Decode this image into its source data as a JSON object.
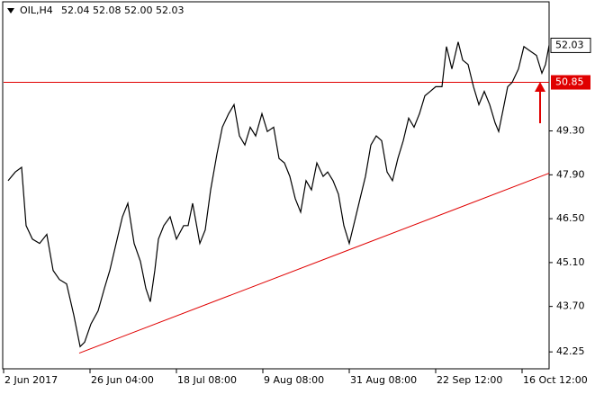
{
  "chart_data": {
    "type": "line",
    "title": "OIL,H4",
    "quote": "52.04 52.08 52.00 52.03",
    "x": [
      5,
      13,
      20,
      25,
      32,
      40,
      48,
      55,
      62,
      70,
      78,
      85,
      90,
      97,
      105,
      112,
      118,
      125,
      132,
      138,
      145,
      152,
      158,
      163,
      168,
      172,
      178,
      185,
      192,
      200,
      205,
      210,
      218,
      224,
      230,
      237,
      243,
      250,
      256,
      262,
      268,
      274,
      280,
      287,
      293,
      300,
      306,
      312,
      318,
      324,
      330,
      336,
      342,
      348,
      355,
      360,
      366,
      372,
      378,
      384,
      390,
      396,
      402,
      408,
      414,
      420,
      426,
      432,
      438,
      444,
      450,
      456,
      462,
      468,
      474,
      480,
      487,
      492,
      498,
      505,
      510,
      516,
      522,
      528,
      534,
      540,
      546,
      550,
      555,
      560,
      565,
      572,
      578,
      585,
      592,
      598,
      602,
      606
    ],
    "series": [
      {
        "name": "OIL",
        "color": "#000000",
        "values": [
          47.71,
          47.99,
          48.14,
          46.28,
          45.85,
          45.71,
          46.0,
          44.85,
          44.56,
          44.42,
          43.42,
          42.42,
          42.56,
          43.14,
          43.56,
          44.28,
          44.85,
          45.71,
          46.56,
          46.99,
          45.71,
          45.14,
          44.28,
          43.85,
          44.85,
          45.85,
          46.28,
          46.56,
          45.85,
          46.28,
          46.28,
          46.99,
          45.71,
          46.14,
          47.42,
          48.56,
          49.42,
          49.85,
          50.14,
          49.14,
          48.85,
          49.42,
          49.14,
          49.85,
          49.28,
          49.42,
          48.42,
          48.28,
          47.85,
          47.14,
          46.71,
          47.71,
          47.42,
          48.28,
          47.85,
          47.99,
          47.71,
          47.28,
          46.28,
          45.71,
          46.42,
          47.14,
          47.85,
          48.85,
          49.14,
          48.99,
          47.99,
          47.71,
          48.42,
          48.99,
          49.71,
          49.42,
          49.85,
          50.42,
          50.56,
          50.71,
          50.71,
          51.99,
          51.28,
          52.14,
          51.56,
          51.42,
          50.71,
          50.14,
          50.56,
          50.14,
          49.56,
          49.28,
          49.99,
          50.71,
          50.85,
          51.28,
          51.99,
          51.85,
          51.71,
          51.14,
          51.42,
          52.03
        ]
      }
    ],
    "last_price": 52.03,
    "hline": 50.85,
    "hline_color": "#e00000",
    "trendline": {
      "x": [
        84,
        606
      ],
      "values": [
        42.21,
        47.95
      ],
      "color": "#e00000"
    },
    "xlim": [
      0,
      606
    ],
    "xticks": [
      {
        "value": 0,
        "label": "2 Jun 2017"
      },
      {
        "value": 96,
        "label": "26 Jun 04:00"
      },
      {
        "value": 192,
        "label": "18 Jul 08:00"
      },
      {
        "value": 288,
        "label": "9 Aug 08:00"
      },
      {
        "value": 384,
        "label": "31 Aug 08:00"
      },
      {
        "value": 480,
        "label": "22 Sep 12:00"
      },
      {
        "value": 576,
        "label": "16 Oct 12:00"
      }
    ],
    "ylim": [
      41.71,
      53.42
    ],
    "yticks": [
      {
        "value": 49.3,
        "label": "49.30"
      },
      {
        "value": 47.9,
        "label": "47.90"
      },
      {
        "value": 46.5,
        "label": "46.50"
      },
      {
        "value": 45.1,
        "label": "45.10"
      },
      {
        "value": 43.7,
        "label": "43.70"
      },
      42.25
    ]
  }
}
